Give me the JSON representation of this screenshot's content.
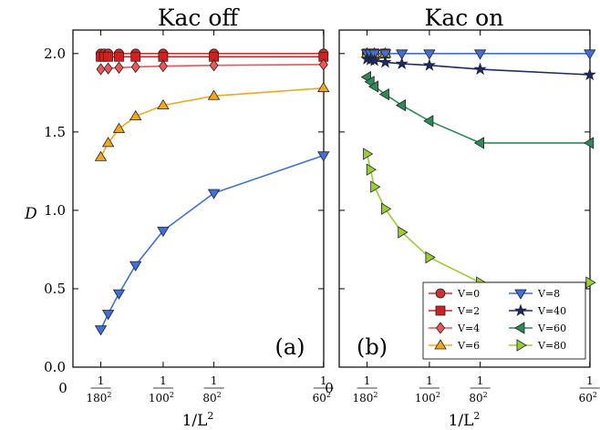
{
  "figure": {
    "ylabel": "D",
    "xlabel_text": "1/L",
    "xlabel_exp": "2",
    "x_zero_label": "0"
  },
  "chart_data": [
    {
      "type": "line",
      "title": "Kac off",
      "panel_label": "(a)",
      "ylabel": "D",
      "xlabel": "1/L^2",
      "x_axis": {
        "scale": "reciprocal-square",
        "min": 0,
        "max": 0.000278,
        "ticks": [
          180,
          100,
          80,
          60
        ],
        "tick_numerator": "1",
        "tick_exponent": "2"
      },
      "ylim": [
        0.0,
        2.15
      ],
      "yticks": [
        0.0,
        0.5,
        1.0,
        1.5,
        2.0
      ],
      "ytick_labels": [
        "0.0",
        "0.5",
        "1.0",
        "1.5",
        "2.0"
      ],
      "grid": false,
      "series": [
        {
          "name": "V=0",
          "marker": "circle",
          "color": "#cc3333",
          "L": [
            180,
            170,
            160,
            140,
            120,
            100,
            80,
            60
          ],
          "values": [
            2.0,
            2.0,
            2.0,
            2.0,
            2.0,
            2.0,
            2.0,
            2.0
          ]
        },
        {
          "name": "V=2",
          "marker": "square",
          "color": "#cc2222",
          "L": [
            180,
            170,
            160,
            140,
            120,
            100,
            80,
            60
          ],
          "values": [
            1.98,
            1.98,
            1.98,
            1.98,
            1.98,
            1.98,
            1.98,
            1.98
          ]
        },
        {
          "name": "V=4",
          "marker": "diamond",
          "color": "#ee5555",
          "L": [
            180,
            160,
            140,
            120,
            100,
            80,
            60
          ],
          "values": [
            1.9,
            1.905,
            1.91,
            1.915,
            1.92,
            1.925,
            1.93
          ]
        },
        {
          "name": "V=6",
          "marker": "triangle-up",
          "color": "#f0a820",
          "L": [
            180,
            160,
            140,
            120,
            100,
            80,
            60
          ],
          "values": [
            1.34,
            1.43,
            1.52,
            1.6,
            1.67,
            1.73,
            1.78
          ]
        },
        {
          "name": "V=8",
          "marker": "triangle-down",
          "color": "#3f6fd8",
          "L": [
            180,
            160,
            140,
            120,
            100,
            80,
            60
          ],
          "values": [
            0.24,
            0.34,
            0.47,
            0.65,
            0.87,
            1.11,
            1.35
          ]
        }
      ]
    },
    {
      "type": "line",
      "title": "Kac on",
      "panel_label": "(b)",
      "ylabel": "",
      "xlabel": "1/L^2",
      "x_axis": {
        "scale": "reciprocal-square",
        "min": 0,
        "max": 0.000278,
        "ticks": [
          180,
          100,
          80,
          60
        ],
        "tick_numerator": "1",
        "tick_exponent": "2"
      },
      "ylim": [
        0.0,
        2.15
      ],
      "grid": false,
      "legend": {
        "placement": "bottom-right",
        "columns": 2
      },
      "series": [
        {
          "name": "V=0",
          "marker": "circle",
          "color": "#cc3333",
          "L": [
            180,
            160,
            140
          ],
          "values": [
            2.0,
            2.0,
            2.0
          ]
        },
        {
          "name": "V=2",
          "marker": "square",
          "color": "#cc2222",
          "L": [
            180,
            160,
            140
          ],
          "values": [
            2.0,
            2.0,
            2.0
          ]
        },
        {
          "name": "V=4",
          "marker": "diamond",
          "color": "#ee5555",
          "L": [
            180,
            160,
            140
          ],
          "values": [
            2.0,
            2.0,
            2.0
          ]
        },
        {
          "name": "V=6",
          "marker": "triangle-up",
          "color": "#f0a820",
          "L": [
            180,
            160,
            140
          ],
          "values": [
            2.0,
            2.0,
            2.0
          ]
        },
        {
          "name": "V=8",
          "marker": "triangle-down",
          "color": "#3f6fd8",
          "L": [
            180,
            170,
            160,
            140,
            120,
            100,
            80,
            60
          ],
          "values": [
            2.0,
            2.0,
            2.0,
            2.0,
            2.0,
            2.0,
            2.0,
            2.0
          ]
        },
        {
          "name": "V=40",
          "marker": "star",
          "color": "#1a2a6c",
          "L": [
            180,
            170,
            160,
            140,
            120,
            100,
            80,
            60
          ],
          "values": [
            1.965,
            1.96,
            1.955,
            1.945,
            1.935,
            1.925,
            1.9,
            1.865
          ]
        },
        {
          "name": "V=60",
          "marker": "triangle-left",
          "color": "#2e8b57",
          "L": [
            180,
            170,
            160,
            140,
            120,
            100,
            80,
            60
          ],
          "values": [
            1.85,
            1.82,
            1.79,
            1.74,
            1.67,
            1.57,
            1.43,
            1.43
          ]
        },
        {
          "name": "V=80",
          "marker": "triangle-right",
          "color": "#9acd32",
          "L": [
            180,
            170,
            160,
            140,
            120,
            100,
            80,
            60
          ],
          "values": [
            1.36,
            1.26,
            1.15,
            1.01,
            0.86,
            0.7,
            0.54,
            0.54
          ]
        }
      ]
    }
  ]
}
